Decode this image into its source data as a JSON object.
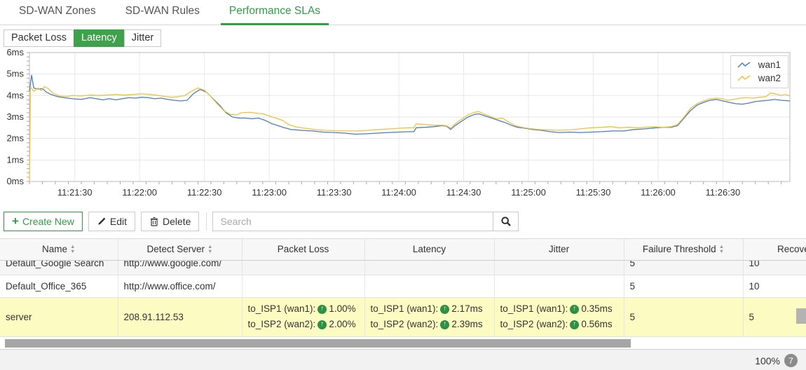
{
  "tabs": {
    "items": [
      {
        "label": "SD-WAN Zones",
        "active": false
      },
      {
        "label": "SD-WAN Rules",
        "active": false
      },
      {
        "label": "Performance SLAs",
        "active": true
      }
    ]
  },
  "subtabs": [
    {
      "label": "Packet Loss",
      "active": false
    },
    {
      "label": "Latency",
      "active": true
    },
    {
      "label": "Jitter",
      "active": false
    }
  ],
  "colors": {
    "accent_green": "#2f9e44",
    "subtab_green": "#3fa14b",
    "wan1_blue": "#4a7fbf",
    "wan2_yellow": "#f1c13f",
    "highlight_row": "#fcfcc2",
    "arrow_green": "#2c9144"
  },
  "chart_data": {
    "type": "line",
    "title": "Latency",
    "ylim": [
      0,
      6
    ],
    "t_range": [
      0,
      352
    ],
    "grid": true,
    "legend_position": "top-right",
    "y_ticks": [
      {
        "v": 6,
        "label": "6ms"
      },
      {
        "v": 5,
        "label": "5ms"
      },
      {
        "v": 4,
        "label": "4ms"
      },
      {
        "v": 3,
        "label": "3ms"
      },
      {
        "v": 2,
        "label": "2ms"
      },
      {
        "v": 1,
        "label": "1ms"
      },
      {
        "v": 0,
        "label": "0ms"
      }
    ],
    "x_ticks": [
      {
        "t": 21,
        "label": "11:21:30"
      },
      {
        "t": 51,
        "label": "11:22:00"
      },
      {
        "t": 81,
        "label": "11:22:30"
      },
      {
        "t": 111,
        "label": "11:23:00"
      },
      {
        "t": 141,
        "label": "11:23:30"
      },
      {
        "t": 171,
        "label": "11:24:00"
      },
      {
        "t": 201,
        "label": "11:24:30"
      },
      {
        "t": 231,
        "label": "11:25:00"
      },
      {
        "t": 261,
        "label": "11:25:30"
      },
      {
        "t": 291,
        "label": "11:26:00"
      },
      {
        "t": 321,
        "label": "11:26:30"
      }
    ],
    "legend": [
      {
        "name": "wan1",
        "color": "#4a7fbf"
      },
      {
        "name": "wan2",
        "color": "#f1c13f"
      }
    ],
    "series": [
      {
        "name": "wan1",
        "color": "#4a7fbf",
        "points": [
          [
            0,
            4.2
          ],
          [
            1,
            4.95
          ],
          [
            2,
            4.35
          ],
          [
            4,
            4.3
          ],
          [
            6,
            4.32
          ],
          [
            8,
            4.15
          ],
          [
            10,
            4.05
          ],
          [
            13,
            3.95
          ],
          [
            16,
            3.9
          ],
          [
            20,
            3.85
          ],
          [
            24,
            3.82
          ],
          [
            28,
            3.9
          ],
          [
            31,
            3.85
          ],
          [
            34,
            3.8
          ],
          [
            37,
            3.85
          ],
          [
            40,
            3.8
          ],
          [
            43,
            3.85
          ],
          [
            46,
            3.9
          ],
          [
            49,
            3.88
          ],
          [
            52,
            3.92
          ],
          [
            55,
            3.9
          ],
          [
            58,
            3.85
          ],
          [
            61,
            3.88
          ],
          [
            64,
            3.82
          ],
          [
            67,
            3.78
          ],
          [
            70,
            3.75
          ],
          [
            73,
            3.78
          ],
          [
            76,
            4.1
          ],
          [
            79,
            4.28
          ],
          [
            82,
            4.15
          ],
          [
            85,
            3.85
          ],
          [
            88,
            3.55
          ],
          [
            91,
            3.2
          ],
          [
            94,
            3.0
          ],
          [
            97,
            2.95
          ],
          [
            100,
            2.95
          ],
          [
            103,
            2.92
          ],
          [
            106,
            2.95
          ],
          [
            109,
            2.85
          ],
          [
            112,
            2.7
          ],
          [
            115,
            2.6
          ],
          [
            118,
            2.5
          ],
          [
            121,
            2.42
          ],
          [
            126,
            2.38
          ],
          [
            131,
            2.35
          ],
          [
            136,
            2.3
          ],
          [
            141,
            2.28
          ],
          [
            146,
            2.25
          ],
          [
            151,
            2.2
          ],
          [
            156,
            2.22
          ],
          [
            161,
            2.25
          ],
          [
            166,
            2.28
          ],
          [
            171,
            2.3
          ],
          [
            176,
            2.32
          ],
          [
            178,
            2.32
          ],
          [
            179,
            2.5
          ],
          [
            183,
            2.52
          ],
          [
            187,
            2.55
          ],
          [
            191,
            2.6
          ],
          [
            193,
            2.58
          ],
          [
            195,
            2.42
          ],
          [
            197,
            2.6
          ],
          [
            200,
            2.8
          ],
          [
            203,
            3.0
          ],
          [
            206,
            3.12
          ],
          [
            208,
            3.15
          ],
          [
            211,
            3.05
          ],
          [
            214,
            2.95
          ],
          [
            217,
            2.85
          ],
          [
            220,
            2.75
          ],
          [
            223,
            2.62
          ],
          [
            226,
            2.52
          ],
          [
            229,
            2.48
          ],
          [
            233,
            2.42
          ],
          [
            237,
            2.38
          ],
          [
            241,
            2.32
          ],
          [
            245,
            2.28
          ],
          [
            250,
            2.3
          ],
          [
            255,
            2.28
          ],
          [
            260,
            2.3
          ],
          [
            265,
            2.32
          ],
          [
            270,
            2.35
          ],
          [
            275,
            2.35
          ],
          [
            280,
            2.42
          ],
          [
            285,
            2.45
          ],
          [
            290,
            2.5
          ],
          [
            294,
            2.52
          ],
          [
            297,
            2.52
          ],
          [
            300,
            2.6
          ],
          [
            303,
            2.95
          ],
          [
            306,
            3.3
          ],
          [
            309,
            3.55
          ],
          [
            312,
            3.68
          ],
          [
            315,
            3.78
          ],
          [
            318,
            3.82
          ],
          [
            321,
            3.75
          ],
          [
            324,
            3.68
          ],
          [
            327,
            3.62
          ],
          [
            330,
            3.6
          ],
          [
            333,
            3.65
          ],
          [
            336,
            3.72
          ],
          [
            339,
            3.75
          ],
          [
            342,
            3.78
          ],
          [
            345,
            3.82
          ],
          [
            348,
            3.78
          ],
          [
            352,
            3.75
          ]
        ]
      },
      {
        "name": "wan2",
        "color": "#f1c13f",
        "points": [
          [
            0,
            0
          ],
          [
            0.5,
            4.4
          ],
          [
            2,
            4.2
          ],
          [
            4,
            4.35
          ],
          [
            5.5,
            4.22
          ],
          [
            7,
            4.42
          ],
          [
            9,
            4.3
          ],
          [
            11,
            4.1
          ],
          [
            14,
            3.98
          ],
          [
            17,
            3.95
          ],
          [
            20,
            4.0
          ],
          [
            24,
            3.98
          ],
          [
            28,
            4.02
          ],
          [
            32,
            4.0
          ],
          [
            36,
            4.02
          ],
          [
            40,
            4.05
          ],
          [
            44,
            4.02
          ],
          [
            48,
            4.05
          ],
          [
            52,
            4.08
          ],
          [
            56,
            4.05
          ],
          [
            60,
            4.0
          ],
          [
            63,
            3.95
          ],
          [
            66,
            3.92
          ],
          [
            69,
            3.95
          ],
          [
            72,
            4.0
          ],
          [
            75,
            4.2
          ],
          [
            78,
            4.35
          ],
          [
            81,
            4.25
          ],
          [
            84,
            3.95
          ],
          [
            87,
            3.6
          ],
          [
            90,
            3.3
          ],
          [
            93,
            3.12
          ],
          [
            96,
            3.1
          ],
          [
            98,
            3.2
          ],
          [
            102,
            3.22
          ],
          [
            105,
            3.18
          ],
          [
            108,
            3.15
          ],
          [
            111,
            3.05
          ],
          [
            114,
            2.95
          ],
          [
            117,
            2.85
          ],
          [
            120,
            2.65
          ],
          [
            123,
            2.55
          ],
          [
            127,
            2.48
          ],
          [
            132,
            2.42
          ],
          [
            137,
            2.38
          ],
          [
            142,
            2.36
          ],
          [
            147,
            2.35
          ],
          [
            152,
            2.35
          ],
          [
            157,
            2.38
          ],
          [
            162,
            2.42
          ],
          [
            167,
            2.45
          ],
          [
            172,
            2.48
          ],
          [
            176,
            2.5
          ],
          [
            178,
            2.5
          ],
          [
            179,
            2.68
          ],
          [
            183,
            2.65
          ],
          [
            187,
            2.62
          ],
          [
            191,
            2.62
          ],
          [
            193,
            2.6
          ],
          [
            195,
            2.48
          ],
          [
            197,
            2.68
          ],
          [
            200,
            2.9
          ],
          [
            203,
            3.1
          ],
          [
            206,
            3.22
          ],
          [
            208,
            3.25
          ],
          [
            211,
            3.12
          ],
          [
            214,
            3.0
          ],
          [
            216,
            2.92
          ],
          [
            219,
            2.95
          ],
          [
            222,
            2.75
          ],
          [
            225,
            2.6
          ],
          [
            228,
            2.52
          ],
          [
            232,
            2.46
          ],
          [
            236,
            2.42
          ],
          [
            240,
            2.4
          ],
          [
            245,
            2.38
          ],
          [
            250,
            2.4
          ],
          [
            255,
            2.45
          ],
          [
            260,
            2.5
          ],
          [
            265,
            2.52
          ],
          [
            269,
            2.55
          ],
          [
            273,
            2.5
          ],
          [
            277,
            2.52
          ],
          [
            281,
            2.5
          ],
          [
            285,
            2.52
          ],
          [
            289,
            2.55
          ],
          [
            293,
            2.52
          ],
          [
            297,
            2.55
          ],
          [
            300,
            2.65
          ],
          [
            303,
            3.0
          ],
          [
            306,
            3.4
          ],
          [
            309,
            3.62
          ],
          [
            312,
            3.75
          ],
          [
            315,
            3.85
          ],
          [
            318,
            3.88
          ],
          [
            321,
            3.85
          ],
          [
            323,
            3.78
          ],
          [
            326,
            3.82
          ],
          [
            329,
            3.88
          ],
          [
            332,
            3.9
          ],
          [
            335,
            3.88
          ],
          [
            338,
            3.92
          ],
          [
            341,
            3.95
          ],
          [
            343,
            4.12
          ],
          [
            345,
            4.08
          ],
          [
            348,
            4.0
          ],
          [
            350,
            4.05
          ],
          [
            352,
            3.98
          ]
        ]
      }
    ]
  },
  "toolbar": {
    "create_label": "Create New",
    "edit_label": "Edit",
    "delete_label": "Delete",
    "search_placeholder": "Search",
    "search_value": ""
  },
  "table": {
    "columns": [
      {
        "label": "Name",
        "sortable": true
      },
      {
        "label": "Detect Server",
        "sortable": true
      },
      {
        "label": "Packet Loss",
        "sortable": false
      },
      {
        "label": "Latency",
        "sortable": false
      },
      {
        "label": "Jitter",
        "sortable": false
      },
      {
        "label": "Failure Threshold",
        "sortable": true
      },
      {
        "label": "Recovery Threshold",
        "sortable": true
      }
    ],
    "rows": [
      {
        "name": "Default_Google Search",
        "detect_server": "http://www.google.com/",
        "failure_threshold": "5",
        "recovery_threshold": "10"
      },
      {
        "name": "Default_Office_365",
        "detect_server": "http://www.office.com/",
        "failure_threshold": "5",
        "recovery_threshold": "10"
      },
      {
        "name": "server",
        "detect_server": "208.91.112.53",
        "packet_loss": [
          {
            "link": "to_ISP1 (wan1):",
            "value": "1.00%"
          },
          {
            "link": "to_ISP2 (wan2):",
            "value": "2.00%"
          }
        ],
        "latency": [
          {
            "link": "to_ISP1 (wan1):",
            "value": "2.17ms"
          },
          {
            "link": "to_ISP2 (wan2):",
            "value": "2.39ms"
          }
        ],
        "jitter": [
          {
            "link": "to_ISP1 (wan1):",
            "value": "0.35ms"
          },
          {
            "link": "to_ISP2 (wan2):",
            "value": "0.56ms"
          }
        ],
        "failure_threshold": "5",
        "recovery_threshold": "5"
      }
    ]
  },
  "footer": {
    "zoom_level": "100%",
    "count": "7"
  }
}
